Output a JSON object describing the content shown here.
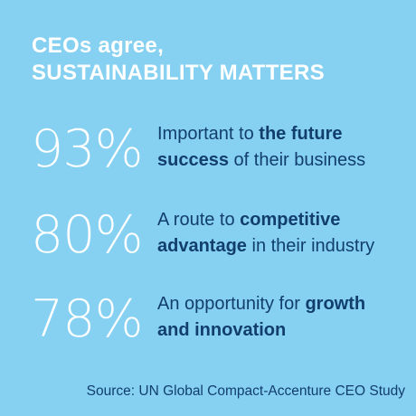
{
  "headline": {
    "line1": "CEOs agree,",
    "line2": "SUSTAINABILITY MATTERS"
  },
  "stats": [
    {
      "value": "93%",
      "line1_plain": "Important to ",
      "line1_bold": "the future",
      "line2_bold": "success",
      "line2_plain": " of their business"
    },
    {
      "value": "80%",
      "line1_plain": "A route to ",
      "line1_bold": "competitive",
      "line2_bold": "advantage",
      "line2_plain": " in their industry"
    },
    {
      "value": "78%",
      "line1_plain": "An opportunity for ",
      "line1_bold": "growth",
      "line2_bold": "and innovation",
      "line2_plain": ""
    }
  ],
  "source": "Source: UN Global Compact-Accenture CEO Study",
  "colors": {
    "background": "#86d1f2",
    "headline": "#ffffff",
    "percent": "#ffffff",
    "text": "#123e6e"
  }
}
